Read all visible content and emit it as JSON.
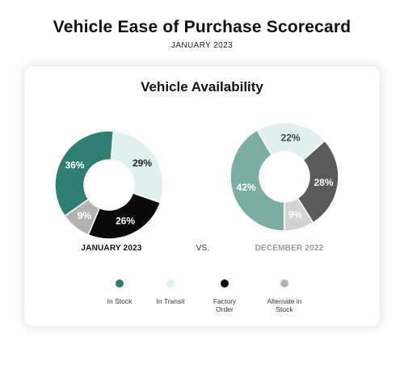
{
  "header": {
    "title": "Vehicle Ease of Purchase Scorecard",
    "subtitle": "JANUARY 2023"
  },
  "card": {
    "title": "Vehicle Availability",
    "vs_label": "VS."
  },
  "colors": {
    "in_stock": "#2e7f71",
    "in_transit": "#dff0ee",
    "factory_order": "#0a0a0a",
    "alternate_in_stock": "#b3b3b3",
    "dec_in_stock": "#7aaea3",
    "dec_factory_order": "#5a5a5a"
  },
  "chart_data": [
    {
      "type": "pie",
      "title": "JANUARY 2023",
      "categories": [
        "In Stock",
        "In Transit",
        "Factory Order",
        "Alternate in Stock"
      ],
      "values": [
        36,
        29,
        26,
        9
      ],
      "labels": [
        "36%",
        "29%",
        "26%",
        "9%"
      ],
      "colors": [
        "#2e7f71",
        "#dff0ee",
        "#0a0a0a",
        "#b3b3b3"
      ],
      "label_colors": [
        "#ffffff",
        "#222222",
        "#ffffff",
        "#ffffff"
      ],
      "donut": true
    },
    {
      "type": "pie",
      "title": "DECEMBER 2022",
      "categories": [
        "In Stock",
        "In Transit",
        "Factory Order",
        "Alternate in Stock"
      ],
      "values": [
        42,
        22,
        28,
        9
      ],
      "labels": [
        "42%",
        "22%",
        "28%",
        "9%"
      ],
      "colors": [
        "#7aaea3",
        "#dff0ee",
        "#5a5a5a",
        "#d3d3d3"
      ],
      "label_colors": [
        "#ffffff",
        "#444444",
        "#ffffff",
        "#ffffff"
      ],
      "donut": true
    }
  ],
  "legend": [
    {
      "label": "In Stock",
      "color": "#2e7f71"
    },
    {
      "label": "In Transit",
      "color": "#dff0ee"
    },
    {
      "label": "Factory\nOrder",
      "color": "#0a0a0a"
    },
    {
      "label": "Alternate in\nStock",
      "color": "#b3b3b3"
    }
  ]
}
